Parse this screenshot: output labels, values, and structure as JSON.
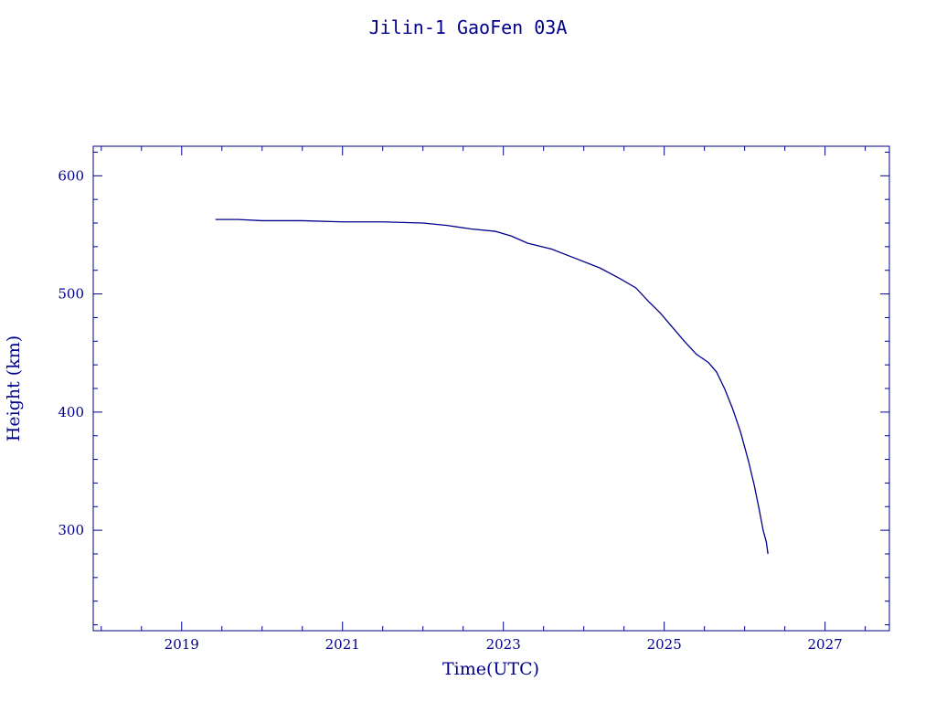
{
  "chart_data": {
    "type": "line",
    "title": "Jilin-1 GaoFen 03A",
    "xlabel": "Time(UTC)",
    "ylabel": "Height (km)",
    "xlim": [
      2017.9,
      2027.8
    ],
    "ylim": [
      215,
      625
    ],
    "x_ticks": [
      2019,
      2021,
      2023,
      2025,
      2027
    ],
    "x_minor_step": 0.5,
    "y_ticks": [
      300,
      400,
      500,
      600
    ],
    "y_minor_step": 20,
    "grid": false,
    "series": [
      {
        "color": "#00008b",
        "x": [
          2019.42,
          2019.7,
          2020.0,
          2020.5,
          2021.0,
          2021.5,
          2022.0,
          2022.3,
          2022.6,
          2022.9,
          2023.1,
          2023.3,
          2023.6,
          2023.9,
          2024.2,
          2024.45,
          2024.65,
          2024.8,
          2024.95,
          2025.1,
          2025.25,
          2025.4,
          2025.55,
          2025.65,
          2025.75,
          2025.85,
          2025.95,
          2026.05,
          2026.12,
          2026.18,
          2026.23,
          2026.27,
          2026.29
        ],
        "y": [
          563,
          563,
          562,
          562,
          561,
          561,
          560,
          558,
          555,
          553,
          549,
          543,
          538,
          530,
          522,
          513,
          505,
          494,
          484,
          472,
          460,
          449,
          442,
          434,
          420,
          403,
          383,
          358,
          338,
          318,
          300,
          290,
          280
        ]
      }
    ]
  }
}
